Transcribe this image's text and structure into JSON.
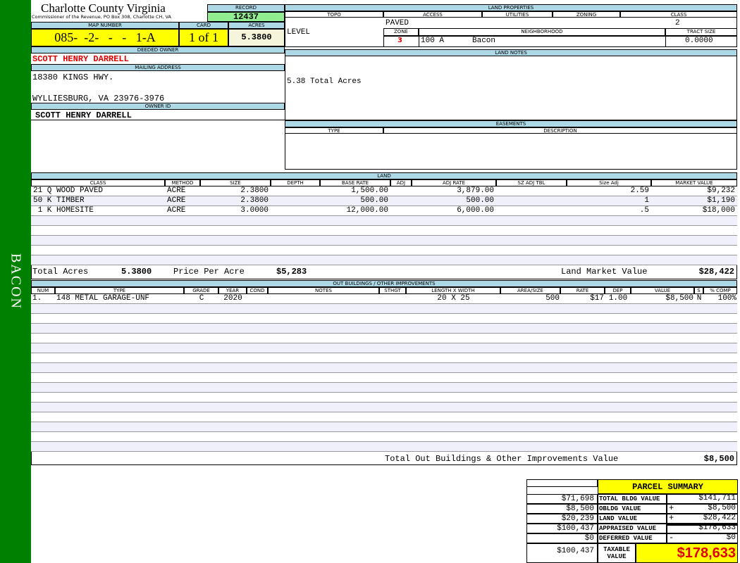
{
  "sidebar": {
    "label": "BACON"
  },
  "header": {
    "title": "Charlotte County Virginia",
    "subtitle": "Commissioner of the Revenue, PO Box 308, Charlotte CH, VA"
  },
  "record": {
    "label": "RECORD",
    "value": "12437"
  },
  "map": {
    "map_label": "MAP NUMBER",
    "map_value": "085-  -2-   -   -   1-A",
    "card_label": "CARD",
    "card_value": "1 of 1",
    "acres_label": "ACRES",
    "acres_value": "5.3800"
  },
  "owner": {
    "deeded_label": "DEEDED OWNER",
    "deeded_value": "SCOTT HENRY DARRELL",
    "mailing_label": "MAILING ADDRESS",
    "address_line1": "18380 KINGS HWY.",
    "address_line2": "WYLLIESBURG, VA 23976-3976",
    "owner_id_label": "OWNER ID",
    "owner_id_value": "SCOTT HENRY DARRELL"
  },
  "land_properties": {
    "title": "LAND PROPERTIES",
    "headers": [
      "TOPO",
      "ACCESS",
      "UTILITIES",
      "ZONING",
      "CLASS"
    ],
    "topo": "LEVEL",
    "access": "PAVED",
    "class": "2",
    "zone_label": "ZONE",
    "neighborhood_label": "NEIGHBORHOOD",
    "tract_label": "TRACT SIZE",
    "zone": "3",
    "neighborhood_code": "100 A",
    "neighborhood_name": "Bacon",
    "tract_size": "0.0000"
  },
  "land_notes": {
    "title": "LAND NOTES",
    "text": "5.38 Total Acres"
  },
  "easements": {
    "title": "EASEMENTS",
    "headers": [
      "TYPE",
      "DESCRIPTION"
    ]
  },
  "land": {
    "title": "LAND",
    "headers": [
      "CLASS",
      "METHOD",
      "SIZE",
      "DEPTH",
      "BASE RATE",
      "ADJ",
      "ADJ RATE",
      "SZ ADJ TBL",
      "Size Adj",
      "MARKET VALUE"
    ],
    "rows": [
      [
        "21 Q WOOD PAVED",
        "ACRE",
        "2.3800",
        "",
        "1,500.00",
        "",
        "3,879.00",
        "",
        "2.59",
        "$9,232"
      ],
      [
        "50 K TIMBER",
        "ACRE",
        "2.3800",
        "",
        "500.00",
        "",
        "500.00",
        "",
        "1",
        "$1,190"
      ],
      [
        " 1 K HOMESITE",
        "ACRE",
        "3.0000",
        "",
        "12,000.00",
        "",
        "6,000.00",
        "",
        ".5",
        "$18,000"
      ]
    ],
    "total_acres_label": "Total Acres",
    "total_acres": "5.3800",
    "price_label": "Price Per Acre",
    "price": "$5,283",
    "market_label": "Land Market Value",
    "market_value": "$28,422"
  },
  "outbuildings": {
    "title": "OUT BUILDINGS / OTHER IMPROVEMENTS",
    "headers": [
      "NUM",
      "TYPE",
      "GRADE",
      "YEAR",
      "COND",
      "NOTES",
      "STHGT",
      "LENGTH X WIDTH",
      "AREA/SIZE",
      "RATE",
      "DEP",
      "VALUE",
      "S",
      "% COMP"
    ],
    "rows": [
      [
        "1.",
        "148 METAL GARAGE-UNF",
        "C",
        "2020",
        "",
        "",
        "",
        "20 X 25",
        "500",
        "$17",
        "1.00",
        "$8,500",
        "N",
        "100%"
      ]
    ],
    "total_label": "Total Out Buildings & Other Improvements Value",
    "total_value": "$8,500"
  },
  "summary": {
    "title": "PARCEL SUMMARY",
    "left": [
      "$71,698",
      "$8,500",
      "$20,239",
      "$100,437",
      "$0",
      "$100,437"
    ],
    "labels": [
      "TOTAL BLDG VALUE",
      "OBLDG VALUE",
      "LAND VALUE",
      "APPRAISED VALUE",
      "DEFERRED VALUE",
      "TAXABLE VALUE"
    ],
    "signs": [
      "",
      "+",
      "+",
      "",
      "-"
    ],
    "right": [
      "$141,711",
      "$8,500",
      "$28,422",
      "$178,633",
      "$0"
    ],
    "taxable": "$178,633"
  },
  "colors": {
    "sidebar": "#008000",
    "header_band": "#add8e6",
    "highlight": "#ffff00",
    "record": "#90ee90",
    "owner_red": "#e00000"
  }
}
